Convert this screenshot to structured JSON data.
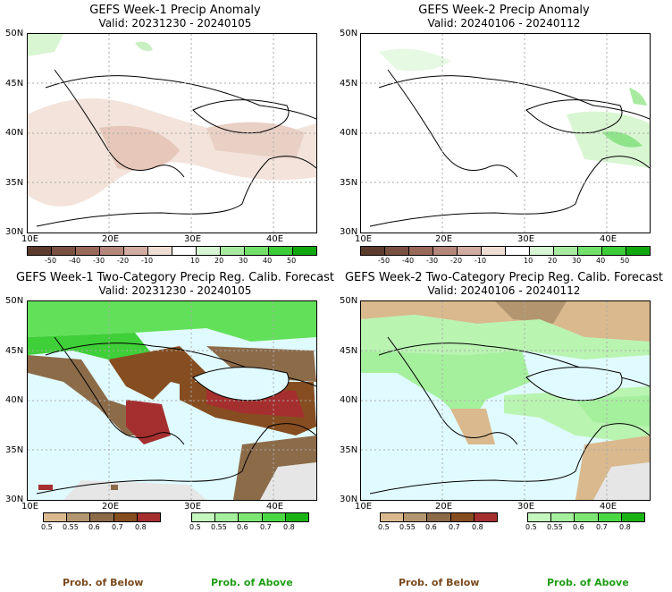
{
  "panels": [
    {
      "title": "GEFS Week-1 Precip Anomaly",
      "valid": "Valid: 20231230 - 20240105"
    },
    {
      "title": "GEFS Week-2 Precip Anomaly",
      "valid": "Valid: 20240106 - 20240112"
    },
    {
      "title": "GEFS Week-1 Two-Category Precip Reg. Calib. Forecast",
      "valid": "Valid: 20231230 - 20240105"
    },
    {
      "title": "GEFS Week-2 Two-Category Precip Reg. Calib. Forecast",
      "valid": "Valid: 20240106 - 20240112"
    }
  ],
  "axes": {
    "lat_labels": [
      "50N",
      "45N",
      "40N",
      "35N",
      "30N"
    ],
    "lon_labels": [
      "10E",
      "20E",
      "30E",
      "40E"
    ]
  },
  "anomaly_colorbar": {
    "labels": [
      "-50",
      "-40",
      "-30",
      "-20",
      "-10",
      "10",
      "20",
      "30",
      "40",
      "50"
    ],
    "colors": [
      "#5c3a2c",
      "#7a5040",
      "#99695a",
      "#b5877a",
      "#d2aca0",
      "#eeddd3",
      "#ffffff",
      "#d6f5d2",
      "#a8eba0",
      "#73e06b",
      "#3ccc37",
      "#11a80f"
    ]
  },
  "prob_colorbars": {
    "below": {
      "labels": [
        "0.5",
        "0.55",
        "0.6",
        "0.7",
        "0.8"
      ],
      "colors": [
        "#d9b98d",
        "#b3966f",
        "#8c6b49",
        "#864d21",
        "#a52f2f"
      ]
    },
    "above": {
      "labels": [
        "0.5",
        "0.55",
        "0.6",
        "0.7",
        "0.8"
      ],
      "colors": [
        "#c4f7bd",
        "#a5f09d",
        "#7ee774",
        "#4ad845",
        "#19b414"
      ]
    }
  },
  "footer": {
    "below": "Prob. of Below",
    "above": "Prob. of Above"
  }
}
